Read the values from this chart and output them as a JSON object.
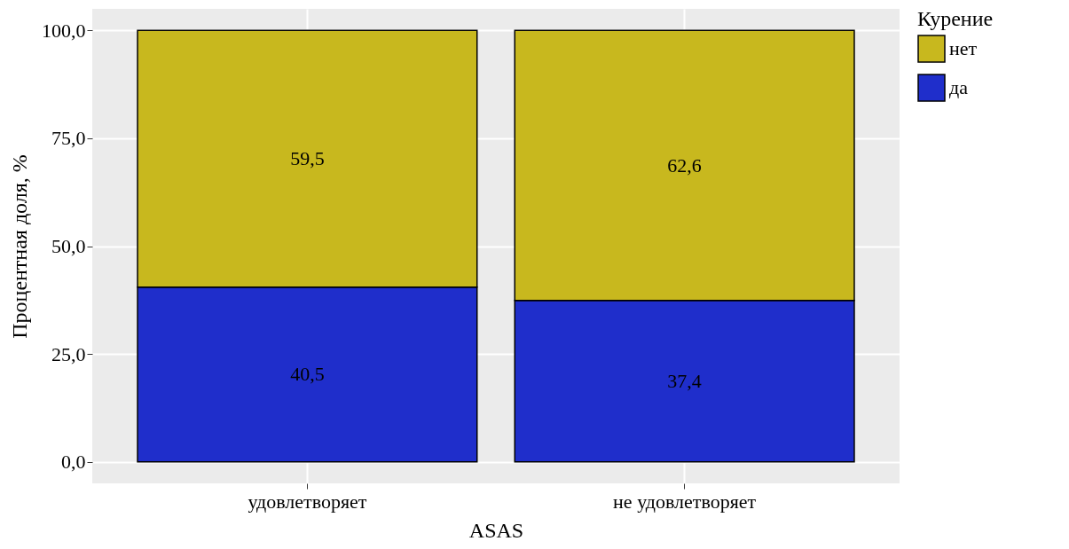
{
  "chart_data": {
    "type": "bar",
    "stacked": true,
    "xlabel": "ASAS",
    "ylabel": "Процентная доля, %",
    "legend_title": "Курение",
    "legend": "right",
    "grid": true,
    "categories": [
      "удовлетворяет",
      "не удовлетворяет"
    ],
    "series": [
      {
        "name": "да",
        "color": "#1f2ecb",
        "values": [
          40.5,
          37.4
        ],
        "value_labels": [
          "40,5",
          "37,4"
        ]
      },
      {
        "name": "нет",
        "color": "#c8b81e",
        "values": [
          59.5,
          62.6
        ],
        "value_labels": [
          "59,5",
          "62,6"
        ]
      }
    ],
    "ylim": [
      -5,
      105
    ],
    "yticks": [
      {
        "value": 0,
        "label": "0,0"
      },
      {
        "value": 25,
        "label": "25,0"
      },
      {
        "value": 50,
        "label": "50,0"
      },
      {
        "value": 75,
        "label": "75,0"
      },
      {
        "value": 100,
        "label": "100,0"
      }
    ]
  }
}
